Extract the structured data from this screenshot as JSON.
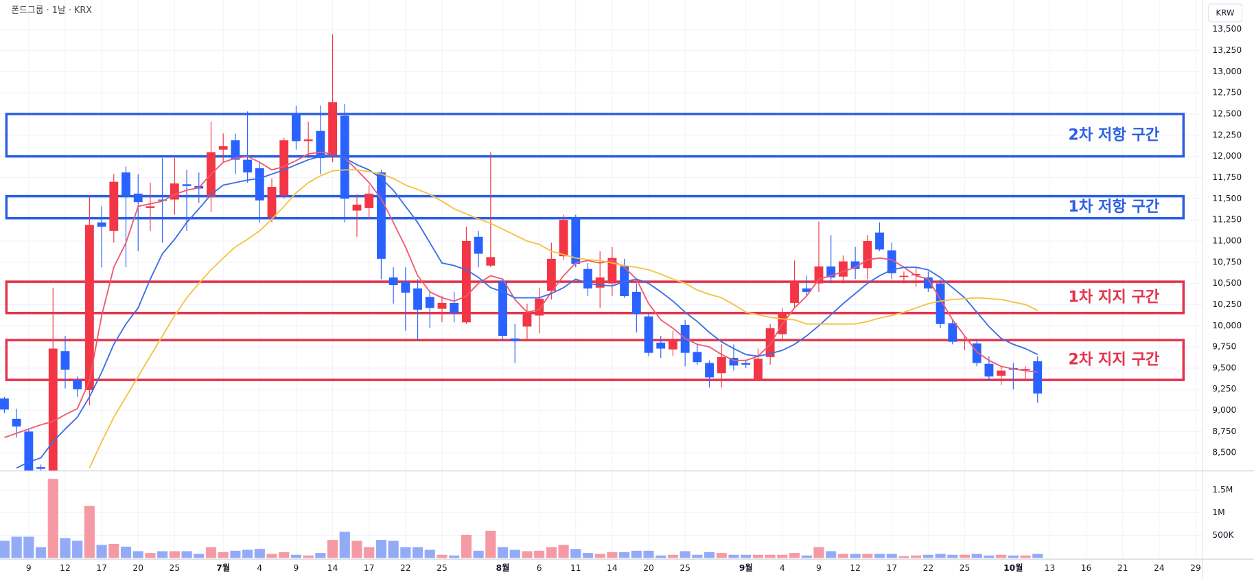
{
  "chart_data": [
    {
      "type": "candlestick",
      "title": "폰드그룹 · 1날 · KRX",
      "currency": "KRW",
      "categories": [
        null,
        null,
        "9",
        null,
        null,
        "12",
        null,
        null,
        "17",
        null,
        null,
        "20",
        null,
        null,
        "25",
        null,
        null,
        null,
        "7월",
        null,
        null,
        "4",
        null,
        null,
        "9",
        null,
        null,
        "14",
        null,
        null,
        "17",
        null,
        null,
        "22",
        null,
        null,
        "25",
        null,
        null,
        null,
        null,
        "8월",
        null,
        null,
        "6",
        null,
        null,
        "11",
        null,
        null,
        "14",
        null,
        null,
        "20",
        null,
        null,
        "25",
        null,
        null,
        null,
        null,
        "9월",
        null,
        null,
        "4",
        null,
        null,
        "9",
        null,
        null,
        "12",
        null,
        null,
        "17",
        null,
        null,
        "22",
        null,
        null,
        "25",
        null,
        null,
        null,
        "10월",
        null,
        null,
        "13",
        null,
        null,
        "16",
        null,
        null,
        "21",
        null,
        null,
        "24",
        null,
        null,
        "29"
      ],
      "open": [
        9140,
        8900,
        8750,
        8330,
        8200,
        9700,
        9360,
        9240,
        11220,
        11120,
        11810,
        11560,
        11390,
        11490,
        11490,
        11670,
        11650,
        11520,
        12080,
        12190,
        11960,
        11860,
        11280,
        11540,
        12510,
        12180,
        12300,
        12000,
        12480,
        11360,
        11390,
        11810,
        10570,
        10520,
        10440,
        10340,
        10200,
        10270,
        10040,
        11050,
        10710,
        10530,
        9850,
        9990,
        10120,
        10410,
        10820,
        11260,
        10670,
        10450,
        10500,
        10700,
        10400,
        10110,
        9800,
        9720,
        10010,
        9690,
        9560,
        9440,
        9620,
        9560,
        9360,
        9630,
        9900,
        10270,
        10440,
        10500,
        10700,
        10580,
        10760,
        10680,
        11100,
        10890,
        10580,
        10600,
        10570,
        10500,
        10030,
        9830,
        9790,
        9550,
        9410,
        9500,
        9480,
        9580,
        null,
        null,
        null,
        null,
        null,
        null,
        null,
        null,
        null,
        null,
        null,
        null,
        null
      ],
      "high": [
        9160,
        9020,
        8780,
        8360,
        10450,
        9880,
        9400,
        11530,
        11410,
        11790,
        11880,
        11790,
        11690,
        11980,
        11980,
        11840,
        11810,
        12410,
        12270,
        12270,
        12530,
        11930,
        11740,
        12220,
        12600,
        12410,
        12600,
        13440,
        12620,
        11550,
        11660,
        11840,
        10690,
        10690,
        10550,
        10400,
        10350,
        10400,
        11170,
        11120,
        12050,
        10550,
        10020,
        10260,
        10450,
        10980,
        11310,
        11310,
        10740,
        10880,
        10930,
        10790,
        10500,
        10160,
        9880,
        9940,
        10070,
        9780,
        9590,
        9780,
        9780,
        9600,
        9730,
        10020,
        10210,
        10770,
        10590,
        11230,
        11070,
        10830,
        10930,
        11070,
        11220,
        10980,
        10640,
        10690,
        10640,
        10550,
        10070,
        9880,
        9830,
        9640,
        9520,
        9560,
        9520,
        9640,
        null,
        null,
        null,
        null,
        null,
        null,
        null,
        null,
        null,
        null,
        null,
        null,
        null
      ],
      "low": [
        8970,
        8680,
        8150,
        8150,
        8150,
        9260,
        9160,
        9060,
        10690,
        10980,
        10690,
        10880,
        11120,
        10980,
        11310,
        11120,
        11450,
        11340,
        11930,
        11790,
        11690,
        11220,
        11220,
        11500,
        12080,
        11980,
        11790,
        11930,
        11220,
        11050,
        11260,
        10550,
        10260,
        9940,
        9830,
        9970,
        10040,
        10040,
        10020,
        10690,
        10690,
        9830,
        9560,
        9830,
        9910,
        10310,
        10780,
        10690,
        10350,
        10210,
        10350,
        10330,
        9920,
        9640,
        9620,
        9640,
        9520,
        9540,
        9270,
        9270,
        9470,
        9500,
        9350,
        9540,
        9830,
        10210,
        10350,
        10400,
        10500,
        10500,
        10550,
        10550,
        10880,
        10550,
        10500,
        10460,
        10400,
        9970,
        9780,
        9710,
        9520,
        9350,
        9300,
        9250,
        9350,
        9090,
        null,
        null,
        null,
        null,
        null,
        null,
        null,
        null,
        null,
        null,
        null,
        null,
        null
      ],
      "close": [
        9010,
        8810,
        8200,
        8310,
        9730,
        9480,
        9250,
        11190,
        11170,
        11700,
        11540,
        11460,
        11410,
        11480,
        11680,
        11650,
        11620,
        12050,
        12120,
        11960,
        11810,
        11480,
        11640,
        12190,
        12180,
        12200,
        11980,
        12640,
        11500,
        11430,
        11560,
        10790,
        10480,
        10390,
        10190,
        10210,
        10270,
        10150,
        11000,
        10850,
        10810,
        9880,
        9820,
        10160,
        10320,
        10790,
        11250,
        10730,
        10440,
        10570,
        10800,
        10350,
        10140,
        9680,
        9730,
        9830,
        9680,
        9570,
        9390,
        9630,
        9530,
        9540,
        9610,
        9970,
        10160,
        10520,
        10400,
        10700,
        10570,
        10760,
        10670,
        11000,
        10900,
        10620,
        10590,
        10610,
        10440,
        10020,
        9810,
        9840,
        9560,
        9400,
        9470,
        9480,
        9490,
        9200,
        null,
        null,
        null,
        null,
        null,
        null,
        null,
        null,
        null,
        null,
        null,
        null,
        null
      ],
      "up_color": "#f23645",
      "down_color": "#2962ff",
      "lines": [
        {
          "color": "#ef5a6f",
          "values": [
            8680,
            8730,
            8780,
            8830,
            8870,
            8950,
            9020,
            9350,
            10120,
            10690,
            10980,
            11410,
            11440,
            11470,
            11550,
            11600,
            11630,
            11790,
            11930,
            11980,
            12000,
            11930,
            11840,
            11880,
            11950,
            12030,
            12050,
            12030,
            11980,
            11840,
            11690,
            11500,
            11220,
            10930,
            10590,
            10400,
            10330,
            10290,
            10350,
            10500,
            10590,
            10550,
            10310,
            10160,
            10190,
            10400,
            10590,
            10740,
            10770,
            10740,
            10770,
            10690,
            10550,
            10260,
            10070,
            9970,
            9850,
            9780,
            9750,
            9660,
            9590,
            9590,
            9640,
            9780,
            10020,
            10210,
            10350,
            10550,
            10590,
            10640,
            10690,
            10780,
            10800,
            10780,
            10690,
            10590,
            10550,
            10310,
            10070,
            9880,
            9690,
            9590,
            9520,
            9490,
            9470,
            9450,
            null,
            null,
            null,
            null,
            null,
            null,
            null,
            null,
            null,
            null,
            null,
            null,
            null
          ]
        },
        {
          "color": "#3b6ee8",
          "values": [
            null,
            8320,
            8390,
            8440,
            8630,
            8780,
            8920,
            9160,
            9450,
            9780,
            10020,
            10210,
            10550,
            10850,
            11020,
            11220,
            11380,
            11550,
            11660,
            11690,
            11720,
            11740,
            11790,
            11840,
            11900,
            11960,
            12000,
            12030,
            11980,
            11900,
            11840,
            11740,
            11600,
            11410,
            11220,
            10980,
            10740,
            10710,
            10660,
            10570,
            10450,
            10400,
            10330,
            10330,
            10330,
            10380,
            10450,
            10550,
            10500,
            10480,
            10470,
            10520,
            10550,
            10500,
            10400,
            10290,
            10160,
            10050,
            9920,
            9810,
            9730,
            9660,
            9640,
            9670,
            9710,
            9780,
            9880,
            10000,
            10130,
            10260,
            10380,
            10500,
            10590,
            10660,
            10690,
            10690,
            10660,
            10570,
            10450,
            10330,
            10160,
            9990,
            9850,
            9780,
            9730,
            9660,
            null,
            null,
            null,
            null,
            null,
            null,
            null,
            null,
            null,
            null,
            null,
            null,
            null
          ]
        },
        {
          "color": "#f5c242",
          "values": [
            null,
            null,
            null,
            null,
            null,
            null,
            null,
            8320,
            8630,
            8920,
            9160,
            9400,
            9640,
            9880,
            10120,
            10330,
            10500,
            10660,
            10800,
            10930,
            11020,
            11120,
            11260,
            11410,
            11570,
            11690,
            11770,
            11830,
            11840,
            11840,
            11820,
            11790,
            11740,
            11660,
            11610,
            11550,
            11470,
            11380,
            11320,
            11260,
            11210,
            11140,
            11070,
            11000,
            10960,
            10880,
            10840,
            10800,
            10780,
            10770,
            10740,
            10710,
            10690,
            10660,
            10610,
            10550,
            10500,
            10420,
            10370,
            10330,
            10250,
            10160,
            10130,
            10100,
            10080,
            10070,
            10020,
            10020,
            10020,
            10020,
            10020,
            10050,
            10090,
            10120,
            10160,
            10210,
            10260,
            10290,
            10310,
            10320,
            10330,
            10320,
            10310,
            10280,
            10250,
            10180,
            null,
            null,
            null,
            null,
            null,
            null,
            null,
            null,
            null,
            null,
            null,
            null,
            null
          ]
        }
      ],
      "zones": [
        {
          "label": "2차 저항 구간",
          "color": "#2b5fe3",
          "range": [
            12000,
            12500
          ]
        },
        {
          "label": "1차 저항 구간",
          "color": "#2b5fe3",
          "range": [
            11270,
            11530
          ]
        },
        {
          "label": "1차 지지 구간",
          "color": "#e5334b",
          "range": [
            10150,
            10520
          ]
        },
        {
          "label": "2차 지지 구간",
          "color": "#e5334b",
          "range": [
            9360,
            9830
          ]
        }
      ],
      "ylim": [
        8300,
        13770
      ],
      "yticks": [
        {
          "value": 8500,
          "label": "8,500"
        },
        {
          "value": 8750,
          "label": "8,750"
        },
        {
          "value": 9000,
          "label": "9,000"
        },
        {
          "value": 9250,
          "label": "9,250"
        },
        {
          "value": 9500,
          "label": "9,500"
        },
        {
          "value": 9750,
          "label": "9,750"
        },
        {
          "value": 10000,
          "label": "10,000"
        },
        {
          "value": 10250,
          "label": "10,250"
        },
        {
          "value": 10500,
          "label": "10,500"
        },
        {
          "value": 10750,
          "label": "10,750"
        },
        {
          "value": 11000,
          "label": "11,000"
        },
        {
          "value": 11250,
          "label": "11,250"
        },
        {
          "value": 11500,
          "label": "11,500"
        },
        {
          "value": 11750,
          "label": "11,750"
        },
        {
          "value": 12000,
          "label": "12,000"
        },
        {
          "value": 12250,
          "label": "12,250"
        },
        {
          "value": 12500,
          "label": "12,500"
        },
        {
          "value": 12750,
          "label": "12,750"
        },
        {
          "value": 13000,
          "label": "13,000"
        },
        {
          "value": 13250,
          "label": "13,250"
        },
        {
          "value": 13500,
          "label": "13,500"
        }
      ],
      "grid": true
    },
    {
      "type": "bar",
      "values": [
        380000,
        470000,
        470000,
        240000,
        1750000,
        440000,
        380000,
        1150000,
        290000,
        310000,
        250000,
        150000,
        110000,
        150000,
        150000,
        150000,
        90000,
        240000,
        130000,
        160000,
        180000,
        200000,
        90000,
        130000,
        70000,
        55000,
        110000,
        400000,
        580000,
        380000,
        240000,
        400000,
        380000,
        240000,
        240000,
        180000,
        70000,
        55000,
        510000,
        160000,
        600000,
        240000,
        180000,
        150000,
        160000,
        240000,
        290000,
        200000,
        110000,
        90000,
        130000,
        130000,
        160000,
        160000,
        55000,
        70000,
        150000,
        70000,
        130000,
        110000,
        70000,
        70000,
        70000,
        70000,
        70000,
        110000,
        55000,
        240000,
        150000,
        90000,
        90000,
        90000,
        90000,
        90000,
        40000,
        55000,
        70000,
        90000,
        70000,
        70000,
        90000,
        55000,
        70000,
        55000,
        55000,
        90000,
        null,
        null,
        null,
        null,
        null,
        null,
        null,
        null,
        null,
        null,
        null,
        null,
        null
      ],
      "up_color": "#f59aa4",
      "down_color": "#93abf7",
      "ylim": [
        0,
        1900000
      ],
      "yticks": [
        {
          "value": 500000,
          "label": "500K"
        },
        {
          "value": 1000000,
          "label": "1M"
        },
        {
          "value": 1500000,
          "label": "1.5M"
        }
      ]
    }
  ]
}
